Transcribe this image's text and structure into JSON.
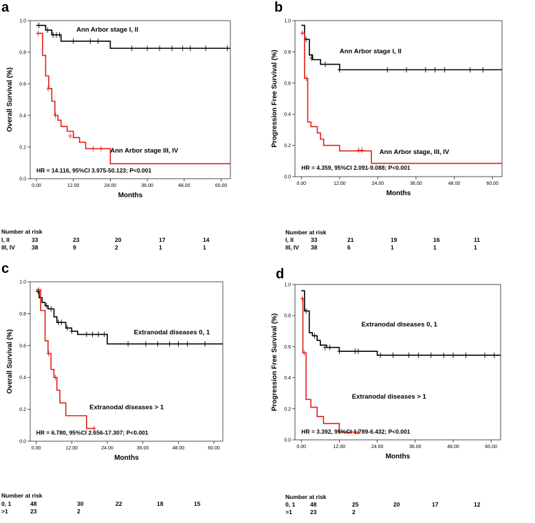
{
  "chart_data": [
    {
      "panel": "a",
      "type": "line",
      "ylabel": "Overall Survival (%)",
      "xlabel": "Months",
      "xlim": [
        -2,
        63
      ],
      "ylim": [
        0,
        1.0
      ],
      "xticks": [
        "0.00",
        "12.00",
        "24.00",
        "36.00",
        "48.00",
        "60.00"
      ],
      "yticks": [
        "0.0",
        "0.2",
        "0.4",
        "0.6",
        "0.8",
        "1.0"
      ],
      "xtick_values": [
        0,
        12,
        24,
        36,
        48,
        60
      ],
      "ytick_values": [
        0,
        0.2,
        0.4,
        0.6,
        0.8,
        1.0
      ],
      "annotation": "HR = 14.116, 95%CI 3.975-50.123; P<0.001",
      "annotation_pos": {
        "x": 0,
        "y": 0.04
      },
      "series": [
        {
          "name": "Ann Arbor stage I, II",
          "color": "#000000",
          "label_pos": {
            "x": 13,
            "y": 0.93
          },
          "steps": [
            [
              0,
              0.97
            ],
            [
              3,
              0.94
            ],
            [
              5,
              0.91
            ],
            [
              8,
              0.87
            ],
            [
              24,
              0.825
            ],
            [
              63,
              0.825
            ]
          ],
          "censors": [
            [
              0.8,
              0.97
            ],
            [
              3.6,
              0.94
            ],
            [
              5.4,
              0.91
            ],
            [
              6.5,
              0.91
            ],
            [
              7.5,
              0.91
            ],
            [
              12,
              0.87
            ],
            [
              17.5,
              0.87
            ],
            [
              20,
              0.87
            ],
            [
              31,
              0.825
            ],
            [
              36,
              0.825
            ],
            [
              40,
              0.825
            ],
            [
              44,
              0.825
            ],
            [
              47.5,
              0.825
            ],
            [
              50,
              0.825
            ],
            [
              55,
              0.825
            ],
            [
              62,
              0.825
            ]
          ]
        },
        {
          "name": "Ann Arbor stage III, IV",
          "color": "#e0201a",
          "label_pos": {
            "x": 24,
            "y": 0.165
          },
          "steps": [
            [
              0,
              0.92
            ],
            [
              2,
              0.78
            ],
            [
              3,
              0.65
            ],
            [
              4,
              0.57
            ],
            [
              5,
              0.49
            ],
            [
              6,
              0.4
            ],
            [
              7,
              0.37
            ],
            [
              8,
              0.33
            ],
            [
              10,
              0.3
            ],
            [
              12,
              0.26
            ],
            [
              14,
              0.23
            ],
            [
              16,
              0.19
            ],
            [
              24,
              0.095
            ],
            [
              63,
              0.095
            ]
          ],
          "censors": [
            [
              0.6,
              0.92
            ],
            [
              3.8,
              0.57
            ],
            [
              6.2,
              0.4
            ],
            [
              11,
              0.27
            ],
            [
              18.5,
              0.19
            ],
            [
              21,
              0.19
            ]
          ]
        }
      ],
      "risk_table": {
        "title": "Number at risk",
        "rows": [
          {
            "group": "I, II",
            "counts": [
              "33",
              "23",
              "20",
              "17",
              "14"
            ]
          },
          {
            "group": "III, IV",
            "counts": [
              "38",
              "9",
              "2",
              "1",
              "1"
            ]
          }
        ]
      }
    },
    {
      "panel": "b",
      "type": "line",
      "ylabel": "Progression Free Survival (%)",
      "xlabel": "Months",
      "xlim": [
        -2,
        63
      ],
      "ylim": [
        0,
        1.0
      ],
      "xticks": [
        "0.00",
        "12.00",
        "24.00",
        "36.00",
        "48.00",
        "60.00"
      ],
      "yticks": [
        "0.0",
        "0.2",
        "0.4",
        "0.6",
        "0.8",
        "1.0"
      ],
      "xtick_values": [
        0,
        12,
        24,
        36,
        48,
        60
      ],
      "ytick_values": [
        0,
        0.2,
        0.4,
        0.6,
        0.8,
        1.0
      ],
      "annotation": "HR = 4.359, 95%CI 2.091-9.088; P<0.001",
      "annotation_pos": {
        "x": 0,
        "y": 0.045
      },
      "series": [
        {
          "name": "Ann Arbor stage I, II",
          "color": "#000000",
          "label_pos": {
            "x": 12,
            "y": 0.79
          },
          "steps": [
            [
              0,
              0.97
            ],
            [
              1,
              0.88
            ],
            [
              2.5,
              0.78
            ],
            [
              3.5,
              0.75
            ],
            [
              6,
              0.72
            ],
            [
              12,
              0.685
            ],
            [
              63,
              0.685
            ]
          ],
          "censors": [
            [
              1.5,
              0.88
            ],
            [
              3.2,
              0.76
            ],
            [
              7.5,
              0.72
            ],
            [
              12,
              0.685
            ],
            [
              27,
              0.685
            ],
            [
              33,
              0.685
            ],
            [
              39,
              0.685
            ],
            [
              42,
              0.685
            ],
            [
              45,
              0.685
            ],
            [
              53,
              0.685
            ],
            [
              57,
              0.685
            ]
          ]
        },
        {
          "name": "Ann Arbor stage, III, IV",
          "color": "#e0201a",
          "label_pos": {
            "x": 24.5,
            "y": 0.145
          },
          "steps": [
            [
              0,
              0.92
            ],
            [
              1,
              0.63
            ],
            [
              2,
              0.35
            ],
            [
              3,
              0.32
            ],
            [
              5,
              0.28
            ],
            [
              6,
              0.24
            ],
            [
              7,
              0.2
            ],
            [
              12,
              0.165
            ],
            [
              22,
              0.085
            ],
            [
              63,
              0.085
            ]
          ],
          "censors": [
            [
              0.3,
              0.92
            ],
            [
              1.6,
              0.63
            ],
            [
              18,
              0.17
            ],
            [
              19,
              0.17
            ]
          ]
        }
      ],
      "risk_table": {
        "title": "Number at risk",
        "rows": [
          {
            "group": "I, II",
            "counts": [
              "33",
              "21",
              "19",
              "16",
              "11"
            ]
          },
          {
            "group": "III, IV",
            "counts": [
              "38",
              "6",
              "1",
              "1",
              "1"
            ]
          }
        ]
      }
    },
    {
      "panel": "c",
      "type": "line",
      "ylabel": "Overall Survival (%)",
      "xlabel": "Months",
      "xlim": [
        -2,
        63
      ],
      "ylim": [
        0,
        1.0
      ],
      "xticks": [
        "0.00",
        "12.00",
        "24.00",
        "36.00",
        "48.00",
        "60.00"
      ],
      "yticks": [
        "0.0",
        "0.2",
        "0.4",
        "0.6",
        "0.8",
        "1.0"
      ],
      "xtick_values": [
        0,
        12,
        24,
        36,
        48,
        60
      ],
      "ytick_values": [
        0,
        0.2,
        0.4,
        0.6,
        0.8,
        1.0
      ],
      "annotation": "HR = 6.780, 95%CI 2.656-17.307; P<0.001",
      "annotation_pos": {
        "x": 0,
        "y": 0.04
      },
      "series": [
        {
          "name": "Extranodal diseases 0, 1",
          "color": "#000000",
          "label_pos": {
            "x": 33,
            "y": 0.67
          },
          "steps": [
            [
              0,
              0.94
            ],
            [
              1,
              0.9
            ],
            [
              2,
              0.87
            ],
            [
              3,
              0.85
            ],
            [
              4,
              0.83
            ],
            [
              6,
              0.78
            ],
            [
              7,
              0.745
            ],
            [
              10,
              0.71
            ],
            [
              12,
              0.69
            ],
            [
              14,
              0.67
            ],
            [
              24,
              0.61
            ],
            [
              63,
              0.61
            ]
          ],
          "censors": [
            [
              0.6,
              0.94
            ],
            [
              3.5,
              0.85
            ],
            [
              5,
              0.83
            ],
            [
              7.5,
              0.745
            ],
            [
              8.5,
              0.745
            ],
            [
              10.5,
              0.71
            ],
            [
              12,
              0.69
            ],
            [
              17,
              0.67
            ],
            [
              19,
              0.67
            ],
            [
              21,
              0.67
            ],
            [
              23,
              0.67
            ],
            [
              31,
              0.61
            ],
            [
              37,
              0.61
            ],
            [
              41,
              0.61
            ],
            [
              45,
              0.61
            ],
            [
              48,
              0.61
            ],
            [
              51,
              0.61
            ],
            [
              57,
              0.61
            ]
          ]
        },
        {
          "name": "Extranodal diseases > 1",
          "color": "#e0201a",
          "label_pos": {
            "x": 18,
            "y": 0.2
          },
          "steps": [
            [
              0,
              0.95
            ],
            [
              1.5,
              0.82
            ],
            [
              3,
              0.63
            ],
            [
              4,
              0.55
            ],
            [
              5,
              0.45
            ],
            [
              6,
              0.4
            ],
            [
              7,
              0.32
            ],
            [
              8,
              0.24
            ],
            [
              10,
              0.16
            ],
            [
              17,
              0.08
            ],
            [
              20,
              0.08
            ]
          ],
          "censors": [
            [
              0.8,
              0.95
            ],
            [
              4.2,
              0.55
            ],
            [
              6.5,
              0.4
            ],
            [
              19.5,
              0.08
            ]
          ]
        }
      ],
      "risk_table": {
        "title": "Number at risk",
        "rows": [
          {
            "group": "0, 1",
            "counts": [
              "48",
              "30",
              "22",
              "18",
              "15"
            ]
          },
          {
            "group": ">1",
            "counts": [
              "23",
              "2",
              "",
              "",
              ""
            ]
          }
        ]
      }
    },
    {
      "panel": "d",
      "type": "line",
      "ylabel": "Progression Free Survival (%)",
      "xlabel": "Months",
      "xlim": [
        -2,
        63
      ],
      "ylim": [
        0,
        1.0
      ],
      "xticks": [
        "0.00",
        "12.00",
        "24.00",
        "36.00",
        "48.00",
        "60.00"
      ],
      "yticks": [
        "0.0",
        "0.2",
        "0.4",
        "0.6",
        "0.8",
        "1.0"
      ],
      "xtick_values": [
        0,
        12,
        24,
        36,
        48,
        60
      ],
      "ytick_values": [
        0,
        0.2,
        0.4,
        0.6,
        0.8,
        1.0
      ],
      "annotation": "HR = 3.392, 95%CI 1.789-6.432; P<0.001",
      "annotation_pos": {
        "x": 0,
        "y": 0.04
      },
      "series": [
        {
          "name": "Extranodal diseases 0, 1",
          "color": "#000000",
          "label_pos": {
            "x": 19,
            "y": 0.73
          },
          "steps": [
            [
              0,
              0.96
            ],
            [
              1,
              0.83
            ],
            [
              2.5,
              0.69
            ],
            [
              3.5,
              0.67
            ],
            [
              5,
              0.64
            ],
            [
              6,
              0.61
            ],
            [
              8,
              0.595
            ],
            [
              12,
              0.57
            ],
            [
              24,
              0.545
            ],
            [
              63,
              0.545
            ]
          ],
          "censors": [
            [
              1.5,
              0.83
            ],
            [
              4.2,
              0.67
            ],
            [
              7.5,
              0.595
            ],
            [
              9,
              0.595
            ],
            [
              12,
              0.57
            ],
            [
              17,
              0.57
            ],
            [
              18,
              0.57
            ],
            [
              25,
              0.545
            ],
            [
              29,
              0.545
            ],
            [
              34,
              0.545
            ],
            [
              37,
              0.545
            ],
            [
              41,
              0.545
            ],
            [
              45,
              0.545
            ],
            [
              48,
              0.545
            ],
            [
              52,
              0.545
            ],
            [
              58,
              0.545
            ],
            [
              61,
              0.545
            ]
          ]
        },
        {
          "name": "Extranodal diseases > 1",
          "color": "#e0201a",
          "label_pos": {
            "x": 16,
            "y": 0.265
          },
          "steps": [
            [
              0,
              0.91
            ],
            [
              0.5,
              0.56
            ],
            [
              1.5,
              0.26
            ],
            [
              3,
              0.21
            ],
            [
              5,
              0.15
            ],
            [
              7,
              0.105
            ],
            [
              12,
              0.05
            ],
            [
              18,
              0.05
            ]
          ],
          "censors": [
            [
              0.3,
              0.91
            ],
            [
              0.9,
              0.56
            ],
            [
              18,
              0.05
            ]
          ]
        }
      ],
      "risk_table": {
        "title": "Number at risk",
        "rows": [
          {
            "group": "0, 1",
            "counts": [
              "48",
              "25",
              "20",
              "17",
              "12"
            ]
          },
          {
            "group": ">1",
            "counts": [
              "23",
              "2",
              "",
              "",
              ""
            ]
          }
        ]
      }
    }
  ]
}
